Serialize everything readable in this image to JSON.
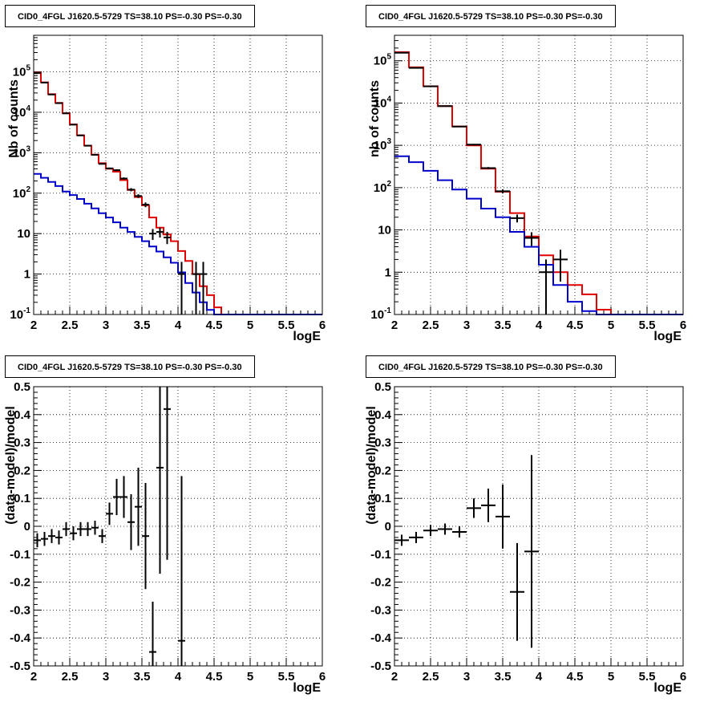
{
  "colors": {
    "data": "#000000",
    "total_model": "#e00000",
    "component_model": "#0000cc",
    "grid": "#000000"
  },
  "chart_data": [
    {
      "type": "line",
      "title": "CID0_4FGL J1620.5-5729 TS=38.10 PS=-0.30 PS=-0.30",
      "xlabel": "logE",
      "ylabel": "Nb of counts",
      "xlim": [
        2,
        6
      ],
      "ylim": [
        0.1,
        800000
      ],
      "log_y": true,
      "grid": true,
      "x_ticks": [
        "2",
        "2.5",
        "3",
        "3.5",
        "4",
        "4.5",
        "5",
        "5.5",
        "6"
      ],
      "y_ticks": [
        "10^-1",
        "1",
        "10",
        "10^2",
        "10^3",
        "10^4",
        "10^5"
      ],
      "bin_edges": [
        2.0,
        2.1,
        2.2,
        2.3,
        2.4,
        2.5,
        2.6,
        2.7,
        2.8,
        2.9,
        3.0,
        3.1,
        3.2,
        3.3,
        3.4,
        3.5,
        3.6,
        3.7,
        3.8,
        3.9,
        4.0,
        4.1,
        4.2,
        4.3,
        4.4,
        4.5,
        4.6,
        4.7,
        4.8,
        4.9,
        5.0,
        5.1,
        5.2,
        5.3,
        5.4,
        5.5,
        5.6,
        5.7,
        5.8,
        5.9,
        6.0
      ],
      "series": [
        {
          "role": "total_model",
          "values": [
            95000,
            55000,
            28000,
            17000,
            9500,
            5000,
            2700,
            1500,
            900,
            550,
            400,
            340,
            210,
            120,
            80,
            50,
            25,
            14,
            9.5,
            6.5,
            3.7,
            2.1,
            1.0,
            0.5,
            0.3,
            0.15,
            0.1,
            0.1,
            0.1,
            0.1,
            0.1,
            0.1,
            0.1,
            0.1,
            0.1,
            0.1,
            0.1,
            0.1,
            0.1,
            0.1
          ]
        },
        {
          "role": "component_model",
          "values": [
            300,
            240,
            190,
            150,
            110,
            90,
            72,
            55,
            42,
            32,
            25,
            19,
            14,
            11,
            8.3,
            6.5,
            4.8,
            3.6,
            2.6,
            1.9,
            1.1,
            0.6,
            0.35,
            0.2,
            0.13,
            0.1,
            0.1,
            0.1,
            0.1,
            0.1,
            0.1,
            0.1,
            0.1,
            0.1,
            0.1,
            0.1,
            0.1,
            0.1,
            0.1,
            0.1
          ]
        },
        {
          "role": "data",
          "points": [
            {
              "x": 2.05,
              "y": 93000,
              "lo": 92000,
              "hi": 94000
            },
            {
              "x": 2.15,
              "y": 54000,
              "lo": 53500,
              "hi": 54500
            },
            {
              "x": 2.25,
              "y": 27500,
              "lo": 27000,
              "hi": 28000
            },
            {
              "x": 2.35,
              "y": 16800,
              "lo": 16500,
              "hi": 17100
            },
            {
              "x": 2.45,
              "y": 9400,
              "lo": 9200,
              "hi": 9600
            },
            {
              "x": 2.55,
              "y": 4950,
              "lo": 4850,
              "hi": 5050
            },
            {
              "x": 2.65,
              "y": 2680,
              "lo": 2620,
              "hi": 2740
            },
            {
              "x": 2.75,
              "y": 1490,
              "lo": 1450,
              "hi": 1530
            },
            {
              "x": 2.85,
              "y": 890,
              "lo": 860,
              "hi": 920
            },
            {
              "x": 2.95,
              "y": 530,
              "lo": 510,
              "hi": 550
            },
            {
              "x": 3.05,
              "y": 410,
              "lo": 390,
              "hi": 430
            },
            {
              "x": 3.15,
              "y": 370,
              "lo": 350,
              "hi": 390
            },
            {
              "x": 3.25,
              "y": 230,
              "lo": 215,
              "hi": 245
            },
            {
              "x": 3.35,
              "y": 122,
              "lo": 111,
              "hi": 133
            },
            {
              "x": 3.45,
              "y": 85,
              "lo": 76,
              "hi": 94
            },
            {
              "x": 3.55,
              "y": 52,
              "lo": 45,
              "hi": 59
            },
            {
              "x": 3.65,
              "y": 10,
              "lo": 7,
              "hi": 13
            },
            {
              "x": 3.75,
              "y": 11,
              "lo": 8,
              "hi": 14
            },
            {
              "x": 3.85,
              "y": 8,
              "lo": 5.5,
              "hi": 11
            },
            {
              "x": 4.05,
              "y": 1,
              "lo": 0.1,
              "hi": 2
            },
            {
              "x": 4.25,
              "y": 1,
              "lo": 0.1,
              "hi": 2
            },
            {
              "x": 4.35,
              "y": 1,
              "lo": 0.1,
              "hi": 2
            }
          ]
        }
      ]
    },
    {
      "type": "line",
      "title": "CID0_4FGL J1620.5-5729 TS=38.10 PS=-0.30 PS=-0.30",
      "xlabel": "logE",
      "ylabel": "nb of counts",
      "xlim": [
        2,
        6
      ],
      "ylim": [
        0.1,
        400000
      ],
      "log_y": true,
      "grid": true,
      "x_ticks": [
        "2",
        "2.5",
        "3",
        "3.5",
        "4",
        "4.5",
        "5",
        "5.5",
        "6"
      ],
      "y_ticks": [
        "10^-1",
        "1",
        "10",
        "10^2",
        "10^3",
        "10^4",
        "10^5"
      ],
      "bin_edges": [
        2.0,
        2.2,
        2.4,
        2.6,
        2.8,
        3.0,
        3.2,
        3.4,
        3.6,
        3.8,
        4.0,
        4.2,
        4.4,
        4.6,
        4.8,
        5.0,
        5.2,
        5.4,
        5.6,
        5.8,
        6.0
      ],
      "series": [
        {
          "role": "total_model",
          "values": [
            160000,
            70000,
            25000,
            8500,
            2800,
            1000,
            280,
            80,
            25,
            7,
            2.5,
            1.0,
            0.5,
            0.3,
            0.13,
            0.1,
            0.1,
            0.1,
            0.1,
            0.1
          ]
        },
        {
          "role": "component_model",
          "values": [
            550,
            400,
            250,
            150,
            90,
            55,
            32,
            20,
            9,
            4,
            1.5,
            0.5,
            0.2,
            0.12,
            0.1,
            0.1,
            0.1,
            0.1,
            0.1,
            0.1
          ]
        },
        {
          "role": "data",
          "points": [
            {
              "x": 2.1,
              "y": 155000,
              "lo": 154000,
              "hi": 156000
            },
            {
              "x": 2.3,
              "y": 68000,
              "lo": 67500,
              "hi": 68500
            },
            {
              "x": 2.5,
              "y": 24800,
              "lo": 24500,
              "hi": 25100
            },
            {
              "x": 2.7,
              "y": 8450,
              "lo": 8350,
              "hi": 8550
            },
            {
              "x": 2.9,
              "y": 2780,
              "lo": 2720,
              "hi": 2840
            },
            {
              "x": 3.1,
              "y": 1040,
              "lo": 1000,
              "hi": 1080
            },
            {
              "x": 3.3,
              "y": 290,
              "lo": 273,
              "hi": 307
            },
            {
              "x": 3.5,
              "y": 82,
              "lo": 73,
              "hi": 91
            },
            {
              "x": 3.7,
              "y": 19,
              "lo": 15,
              "hi": 23
            },
            {
              "x": 3.9,
              "y": 6.5,
              "lo": 4.2,
              "hi": 8.8
            },
            {
              "x": 4.1,
              "y": 1,
              "lo": 0.1,
              "hi": 2
            },
            {
              "x": 4.3,
              "y": 2,
              "lo": 0.6,
              "hi": 3.4
            }
          ]
        }
      ]
    },
    {
      "type": "scatter",
      "title": "CID0_4FGL J1620.5-5729 TS=38.10 PS=-0.30 PS=-0.30",
      "xlabel": "logE",
      "ylabel": "(data-model)/model",
      "xlim": [
        2,
        6
      ],
      "ylim": [
        -0.5,
        0.5
      ],
      "grid": true,
      "x_ticks": [
        "2",
        "2.5",
        "3",
        "3.5",
        "4",
        "4.5",
        "5",
        "5.5",
        "6"
      ],
      "y_ticks": [
        "-0.5",
        "-0.4",
        "-0.3",
        "-0.2",
        "-0.1",
        "0",
        "0.1",
        "0.2",
        "0.3",
        "0.4",
        "0.5"
      ],
      "x_halfwidth": 0.05,
      "points": [
        {
          "x": 2.05,
          "y": -0.05,
          "err": 0.025
        },
        {
          "x": 2.15,
          "y": -0.045,
          "err": 0.025
        },
        {
          "x": 2.25,
          "y": -0.035,
          "err": 0.025
        },
        {
          "x": 2.35,
          "y": -0.04,
          "err": 0.025
        },
        {
          "x": 2.45,
          "y": -0.01,
          "err": 0.025
        },
        {
          "x": 2.55,
          "y": -0.025,
          "err": 0.025
        },
        {
          "x": 2.65,
          "y": -0.01,
          "err": 0.025
        },
        {
          "x": 2.75,
          "y": -0.01,
          "err": 0.025
        },
        {
          "x": 2.85,
          "y": -0.005,
          "err": 0.025
        },
        {
          "x": 2.95,
          "y": -0.035,
          "err": 0.025
        },
        {
          "x": 3.05,
          "y": 0.045,
          "err": 0.04
        },
        {
          "x": 3.15,
          "y": 0.105,
          "err": 0.065
        },
        {
          "x": 3.25,
          "y": 0.105,
          "err": 0.075
        },
        {
          "x": 3.35,
          "y": 0.015,
          "err": 0.1
        },
        {
          "x": 3.45,
          "y": 0.07,
          "err": 0.14
        },
        {
          "x": 3.55,
          "y": -0.035,
          "err": 0.19
        },
        {
          "x": 3.65,
          "y": -0.45,
          "err": 0.18
        },
        {
          "x": 3.75,
          "y": 0.21,
          "err": 0.38
        },
        {
          "x": 3.85,
          "y": 0.42,
          "err": 0.54
        },
        {
          "x": 4.05,
          "y": -0.41,
          "err": 0.59
        }
      ]
    },
    {
      "type": "scatter",
      "title": "CID0_4FGL J1620.5-5729 TS=38.10 PS=-0.30 PS=-0.30",
      "xlabel": "logE",
      "ylabel": "(data-model)/model",
      "xlim": [
        2,
        6
      ],
      "ylim": [
        -0.5,
        0.5
      ],
      "grid": true,
      "x_ticks": [
        "2",
        "2.5",
        "3",
        "3.5",
        "4",
        "4.5",
        "5",
        "5.5",
        "6"
      ],
      "y_ticks": [
        "-0.5",
        "-0.4",
        "-0.3",
        "-0.2",
        "-0.1",
        "0",
        "0.1",
        "0.2",
        "0.3",
        "0.4",
        "0.5"
      ],
      "x_halfwidth": 0.1,
      "points": [
        {
          "x": 2.1,
          "y": -0.05,
          "err": 0.02
        },
        {
          "x": 2.3,
          "y": -0.04,
          "err": 0.02
        },
        {
          "x": 2.5,
          "y": -0.015,
          "err": 0.02
        },
        {
          "x": 2.7,
          "y": -0.01,
          "err": 0.02
        },
        {
          "x": 2.9,
          "y": -0.02,
          "err": 0.02
        },
        {
          "x": 3.1,
          "y": 0.065,
          "err": 0.035
        },
        {
          "x": 3.3,
          "y": 0.075,
          "err": 0.06
        },
        {
          "x": 3.5,
          "y": 0.035,
          "err": 0.115
        },
        {
          "x": 3.7,
          "y": -0.235,
          "err": 0.175
        },
        {
          "x": 3.9,
          "y": -0.09,
          "err": 0.345
        }
      ]
    }
  ]
}
